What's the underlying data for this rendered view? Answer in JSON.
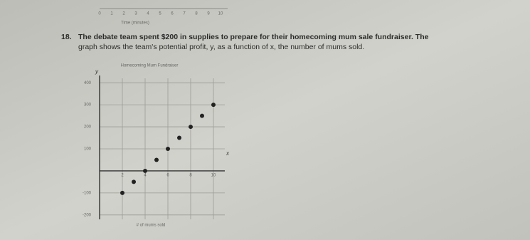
{
  "previous_axis": {
    "ticks": [
      0,
      1,
      2,
      3,
      4,
      5,
      6,
      7,
      8,
      9,
      10
    ],
    "label": "Time (minutes)"
  },
  "question": {
    "number": "18.",
    "lines": [
      "The debate team spent $200 in supplies to prepare for their homecoming mum sale fundraiser. The",
      "graph shows the team's potential profit, y, as a function of x, the number of mums sold."
    ]
  },
  "chart_data": {
    "type": "scatter",
    "title": "Homecoming Mum Fundraiser",
    "x_label": "# of mums sold",
    "y_axis_letter": "y",
    "x_axis_letter": "x",
    "x": [
      2,
      3,
      4,
      5,
      6,
      7,
      8,
      9,
      10
    ],
    "values": [
      -100,
      -50,
      0,
      50,
      100,
      150,
      200,
      250,
      300
    ],
    "color": "#222222",
    "xlim": [
      0,
      11
    ],
    "ylim": [
      -220,
      420
    ],
    "xticks": [
      2,
      4,
      6,
      8,
      10
    ],
    "yticks": [
      -200,
      -100,
      100,
      200,
      300,
      400
    ],
    "grid": true
  }
}
